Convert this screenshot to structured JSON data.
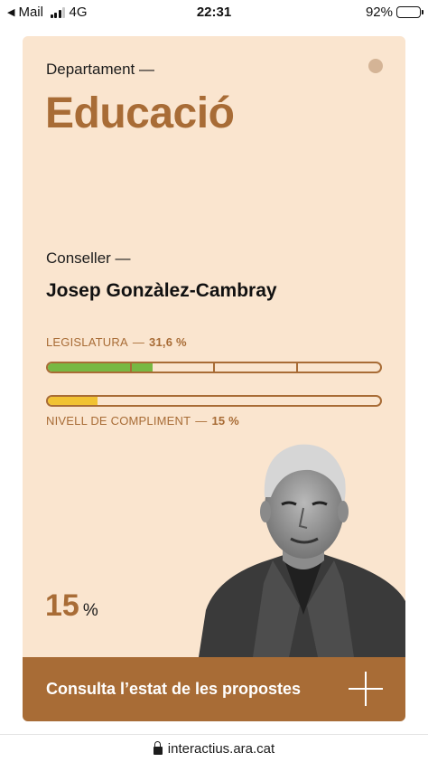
{
  "status_bar": {
    "back_label": "Mail",
    "network": "4G",
    "time": "22:31",
    "battery": "92%",
    "battery_level": 0.92,
    "signal_bars": 3,
    "icons": [
      "back-arrow-icon",
      "signal-icon",
      "battery-icon"
    ]
  },
  "card": {
    "department_label": "Departament —",
    "department_name": "Educació",
    "conseller_label": "Conseller —",
    "conseller_name": "Josep Gonzàlez-Cambray",
    "legislatura": {
      "label": "LEGISLATURA",
      "separator": "—",
      "value": "31,6 %",
      "fraction": 0.316,
      "segments": 4
    },
    "compliment": {
      "label": "NIVELL DE COMPLIMENT",
      "separator": "—",
      "value": "15 %",
      "fraction": 0.15
    },
    "big_percent": {
      "number": "15",
      "unit": "%"
    },
    "cta_label": "Consulta l’estat de les propostes",
    "icons": [
      "status-dot-icon",
      "plus-icon"
    ]
  },
  "url_bar": {
    "url": "interactius.ara.cat",
    "icon": "lock-icon"
  },
  "colors": {
    "card_bg": "#fae5cf",
    "accent": "#a86c36",
    "progress_green": "#77b843",
    "progress_yellow": "#f1c232"
  }
}
